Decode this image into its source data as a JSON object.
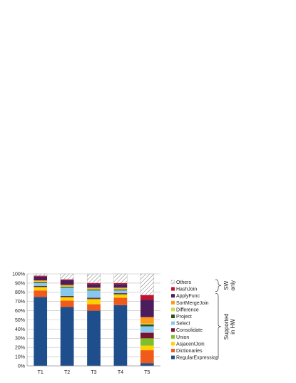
{
  "chart_data": {
    "type": "bar",
    "stacked": true,
    "categories": [
      "T1",
      "T2",
      "T3",
      "T4",
      "T5"
    ],
    "ylim": [
      0,
      100
    ],
    "yticks": [
      "0%",
      "10%",
      "20%",
      "30%",
      "40%",
      "50%",
      "60%",
      "70%",
      "80%",
      "90%",
      "100%"
    ],
    "grid": true,
    "legend_position": "right",
    "series": [
      {
        "name": "RegularExpression",
        "color": "#1f4e8c",
        "values": [
          75,
          64,
          60,
          66,
          3
        ]
      },
      {
        "name": "Dictionaries",
        "color": "#f05a1a",
        "values": [
          7,
          7,
          7,
          8,
          14
        ]
      },
      {
        "name": "AsjacentJoin",
        "color": "#ffd200",
        "values": [
          3,
          3,
          5,
          3,
          5
        ]
      },
      {
        "name": "Union",
        "color": "#7fbf2a",
        "values": [
          1,
          1,
          1,
          1,
          8
        ]
      },
      {
        "name": "Consolidate",
        "color": "#7a1230",
        "values": [
          1,
          1,
          1,
          1,
          6
        ]
      },
      {
        "name": "Select",
        "color": "#89c8ee",
        "values": [
          3,
          9,
          8,
          3,
          7
        ]
      },
      {
        "name": "Project",
        "color": "#2f4f1f",
        "values": [
          1,
          1,
          1,
          1,
          2
        ]
      },
      {
        "name": "Difference",
        "color": "#c9e03a",
        "values": [
          1,
          1,
          1,
          1,
          1
        ]
      },
      {
        "name": "SortMergeJoin",
        "color": "#ff9a1a",
        "values": [
          1,
          1,
          1,
          1,
          7
        ]
      },
      {
        "name": "ApplyFunc",
        "color": "#4b1d5e",
        "values": [
          4,
          5,
          4,
          4,
          19
        ]
      },
      {
        "name": "HashJoin",
        "color": "#c8102e",
        "values": [
          1,
          1,
          1,
          1,
          5
        ]
      },
      {
        "name": "Others",
        "color": "hatch",
        "values": [
          2,
          6,
          10,
          10,
          23
        ]
      }
    ],
    "legend_order": [
      "Others",
      "HashJoin",
      "ApplyFunc",
      "SortMergeJoin",
      "Difference",
      "Project",
      "Select",
      "Consolidate",
      "Union",
      "AsjacentJoin",
      "Dictionaries",
      "RegularExpression"
    ],
    "annotations": [
      {
        "text": "SW only",
        "groups": [
          "Others",
          "HashJoin"
        ]
      },
      {
        "text": "Supported in HW",
        "groups": [
          "ApplyFunc",
          "RegularExpression"
        ]
      }
    ]
  }
}
